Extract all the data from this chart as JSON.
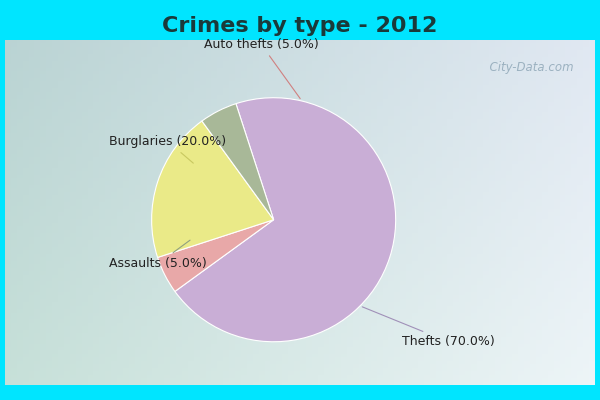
{
  "title": "Crimes by type - 2012",
  "slices": [
    {
      "label": "Thefts (70.0%)",
      "value": 70.0,
      "color": "#c9aed6"
    },
    {
      "label": "Auto thefts (5.0%)",
      "value": 5.0,
      "color": "#e8a8a8"
    },
    {
      "label": "Burglaries (20.0%)",
      "value": 20.0,
      "color": "#eaea88"
    },
    {
      "label": "Assaults (5.0%)",
      "value": 5.0,
      "color": "#a8b898"
    }
  ],
  "bg_color_top": "#00e5ff",
  "bg_color_main_tl": "#b8dcc8",
  "bg_color_main_br": "#e8e8f0",
  "title_fontsize": 16,
  "label_fontsize": 9,
  "startangle": 108,
  "watermark": "  City-Data.com"
}
